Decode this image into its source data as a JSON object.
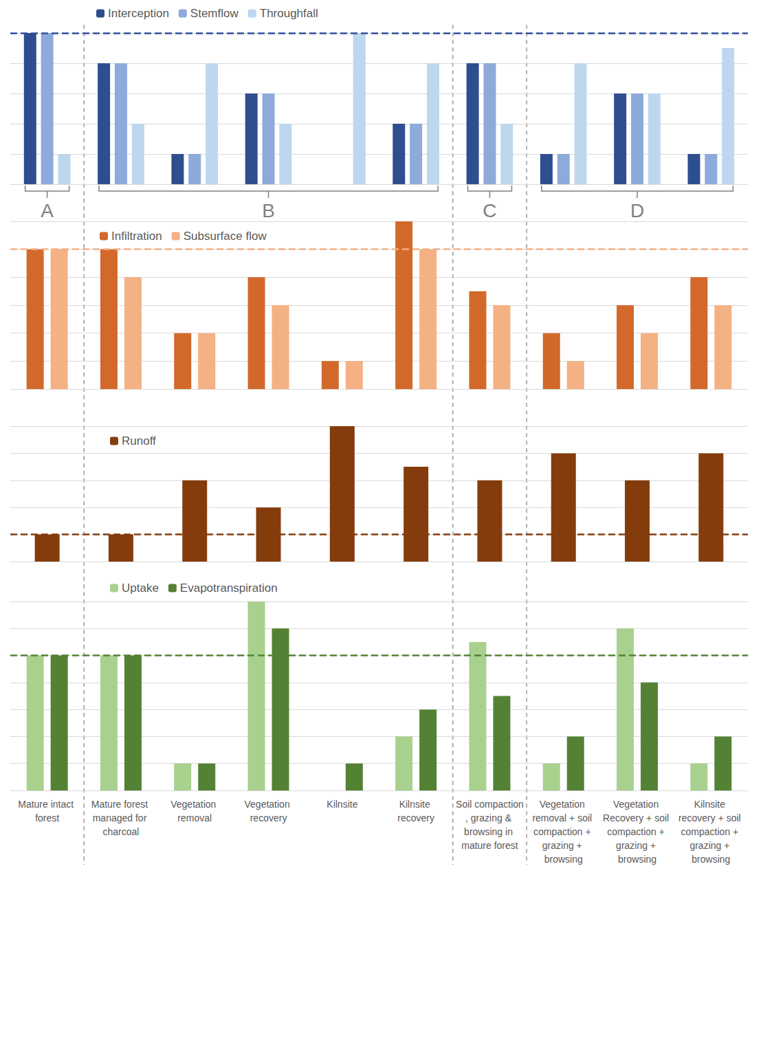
{
  "chart_data": [
    {
      "type": "bar",
      "categories": [
        "Mature intact forest",
        "Mature forest managed for charcoal",
        "Vegetation removal",
        "Vegetation recovery",
        "Kilnsite",
        "Kilnsite recovery",
        "Soil compaction, grazing & browsing in mature forest",
        "Vegetation removal + soil compaction + grazing + browsing",
        "Vegetation Recovery + soil compaction + grazing + browsing",
        "Kilnsite recovery + soil compaction + grazing + browsing"
      ],
      "series": [
        {
          "name": "Interception",
          "color": "#2f4e8f",
          "values": [
            5,
            4,
            1,
            3,
            0,
            2,
            4,
            1,
            3,
            1
          ]
        },
        {
          "name": "Stemflow",
          "color": "#8eaadb",
          "values": [
            5,
            4,
            1,
            3,
            0,
            2,
            4,
            1,
            3,
            1
          ]
        },
        {
          "name": "Throughfall",
          "color": "#bdd7ee",
          "values": [
            1,
            2,
            4,
            2,
            5,
            4,
            2,
            4,
            3,
            4.5
          ]
        }
      ],
      "ylim": [
        0,
        5
      ],
      "yticks": [
        0,
        1,
        2,
        3,
        4,
        5
      ],
      "grid": true,
      "legend": "top-left",
      "tick_labels": false,
      "reference_line": {
        "value": 5,
        "color": "#2f4e9b"
      },
      "groups": [
        {
          "label": "A",
          "start": 0,
          "end": 0
        },
        {
          "label": "B",
          "start": 1,
          "end": 5
        },
        {
          "label": "C",
          "start": 6,
          "end": 6
        },
        {
          "label": "D",
          "start": 7,
          "end": 9
        }
      ]
    },
    {
      "type": "bar",
      "categories": [
        "Mature intact forest",
        "Mature forest managed for charcoal",
        "Vegetation removal",
        "Vegetation recovery",
        "Kilnsite",
        "Kilnsite recovery",
        "Soil compaction, grazing & browsing in mature forest",
        "Vegetation removal + soil compaction + grazing + browsing",
        "Vegetation Recovery + soil compaction + grazing + browsing",
        "Kilnsite recovery + soil compaction + grazing + browsing"
      ],
      "series": [
        {
          "name": "Infiltration",
          "color": "#d2692a",
          "values": [
            5,
            5,
            2,
            4,
            1,
            6,
            3.5,
            2,
            3,
            4
          ]
        },
        {
          "name": "Subsurface flow",
          "color": "#f4b183",
          "values": [
            5,
            4,
            2,
            3,
            1,
            5,
            3,
            1,
            2,
            3
          ]
        }
      ],
      "ylim": [
        0,
        6
      ],
      "yticks": [
        0,
        1,
        2,
        3,
        4,
        5,
        6
      ],
      "grid": true,
      "legend": "top-left",
      "tick_labels": false,
      "reference_line": {
        "value": 5,
        "color": "#f4b183"
      }
    },
    {
      "type": "bar",
      "categories": [
        "Mature intact forest",
        "Mature forest managed for charcoal",
        "Vegetation removal",
        "Vegetation recovery",
        "Kilnsite",
        "Kilnsite recovery",
        "Soil compaction, grazing & browsing in mature forest",
        "Vegetation removal + soil compaction + grazing + browsing",
        "Vegetation Recovery + soil compaction + grazing + browsing",
        "Kilnsite recovery + soil compaction + grazing + browsing"
      ],
      "series": [
        {
          "name": "Runoff",
          "color": "#843c0c",
          "values": [
            1,
            1,
            3,
            2,
            5,
            3.5,
            3,
            4,
            3,
            4
          ]
        }
      ],
      "ylim": [
        0,
        5
      ],
      "yticks": [
        0,
        1,
        2,
        3,
        4,
        5
      ],
      "grid": true,
      "legend": "top-left",
      "tick_labels": false,
      "reference_line": {
        "value": 1,
        "color": "#843c0c"
      }
    },
    {
      "type": "bar",
      "categories": [
        "Mature intact forest",
        "Mature forest managed for charcoal",
        "Vegetation removal",
        "Vegetation recovery",
        "Kilnsite",
        "Kilnsite recovery",
        "Soil compaction, grazing & browsing in mature forest",
        "Vegetation removal + soil compaction + grazing + browsing",
        "Vegetation Recovery + soil compaction + grazing + browsing",
        "Kilnsite recovery + soil compaction + grazing + browsing"
      ],
      "series": [
        {
          "name": "Uptake",
          "color": "#a9d18e",
          "values": [
            5,
            5,
            1,
            7,
            0,
            2,
            5.5,
            1,
            6,
            1
          ]
        },
        {
          "name": "Evapotranspiration",
          "color": "#548235",
          "values": [
            5,
            5,
            1,
            6,
            1,
            3,
            3.5,
            2,
            4,
            2
          ]
        }
      ],
      "ylim": [
        0,
        7
      ],
      "yticks": [
        0,
        1,
        2,
        3,
        4,
        5,
        6,
        7
      ],
      "grid": true,
      "legend": "top-left",
      "tick_labels": "x",
      "reference_line": {
        "value": 5,
        "color": "#548235"
      }
    }
  ]
}
